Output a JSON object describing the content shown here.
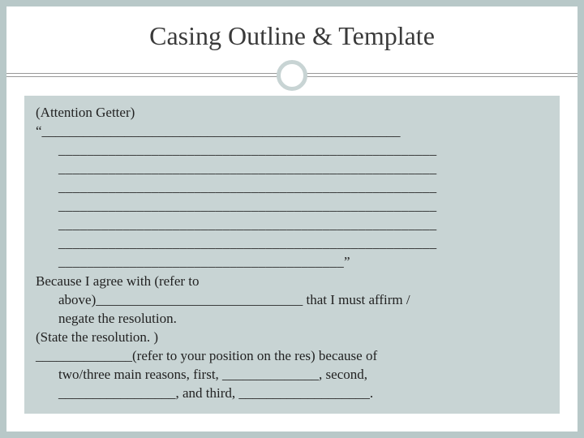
{
  "slide": {
    "title": "Casing Outline & Template",
    "background_color": "#b8c8c8",
    "slide_background": "#ffffff",
    "content_background": "#c8d4d4",
    "title_color": "#3a3a3a",
    "text_color": "#222222",
    "circle_border_color": "#c8d4d4",
    "title_fontsize": 32,
    "body_fontsize": 17
  },
  "content": {
    "attention_label": "(Attention Getter)",
    "open_quote": "“",
    "blank_block_1": "____________________________________________________",
    "blank_block_2": "_____________________________________________________",
    "blank_block_3": "_____________________________________________________",
    "blank_block_4": "_____________________________________________________",
    "blank_block_5": "_____________________________________________________",
    "blank_block_6": "_____________________________________________________",
    "blank_block_7": "_____________________________________________________",
    "blank_block_8": "________________________________________”",
    "because_line_1": "Because I agree with (refer to",
    "because_line_2": "above)______________________________ that I must affirm /",
    "because_line_3": "negate the resolution.",
    "state_line": "(State the resolution. )",
    "pos_line_1": "______________(refer to your position on the res) because of",
    "pos_line_2": "two/three main reasons, first, ______________, second,",
    "pos_line_3": "_________________, and third, ___________________."
  }
}
